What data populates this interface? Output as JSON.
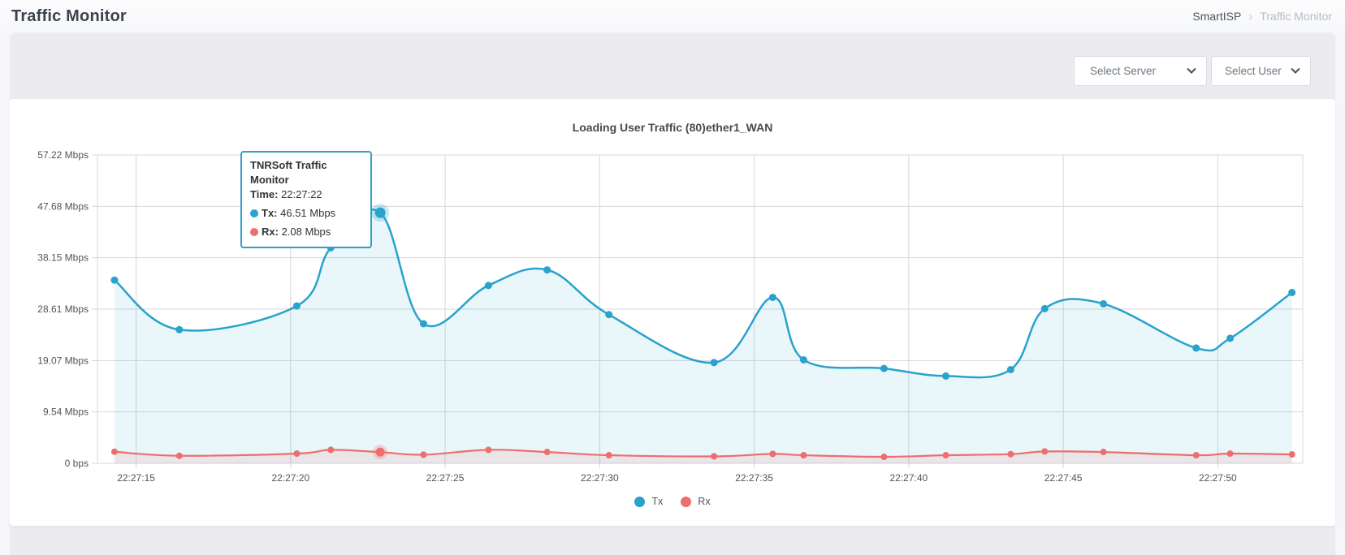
{
  "header": {
    "title": "Traffic Monitor",
    "breadcrumb": {
      "parent": "SmartISP",
      "separator": "›",
      "current": "Traffic Monitor"
    }
  },
  "filters": {
    "server_placeholder": "Select Server",
    "user_placeholder": "Select User"
  },
  "tooltip": {
    "title": "TNRSoft Traffic Monitor",
    "time_label": "Time:",
    "time_value": "22:27:22",
    "tx_label": "Tx:",
    "tx_value": "46.51 Mbps",
    "rx_label": "Rx:",
    "rx_value": "2.08 Mbps"
  },
  "chart_data": {
    "type": "line",
    "title": "Loading User Traffic (80)ether1_WAN",
    "xlabel": "",
    "ylabel": "",
    "ylim": [
      0,
      57.22
    ],
    "x_domain_seconds": [
      13.75,
      52.75
    ],
    "grid": true,
    "legend_position": "bottom",
    "y_ticks": [
      {
        "label": "57.22 Mbps",
        "value": 57.22
      },
      {
        "label": "47.68 Mbps",
        "value": 47.68
      },
      {
        "label": "38.15 Mbps",
        "value": 38.15
      },
      {
        "label": "28.61 Mbps",
        "value": 28.61
      },
      {
        "label": "19.07 Mbps",
        "value": 19.07
      },
      {
        "label": "9.54 Mbps",
        "value": 9.54
      },
      {
        "label": "0 bps",
        "value": 0
      }
    ],
    "x_ticks": [
      {
        "label": "22:27:15",
        "sec": 15
      },
      {
        "label": "22:27:20",
        "sec": 20
      },
      {
        "label": "22:27:25",
        "sec": 25
      },
      {
        "label": "22:27:30",
        "sec": 30
      },
      {
        "label": "22:27:35",
        "sec": 35
      },
      {
        "label": "22:27:40",
        "sec": 40
      },
      {
        "label": "22:27:45",
        "sec": 45
      },
      {
        "label": "22:27:50",
        "sec": 50
      }
    ],
    "active_sec": 22.9,
    "active_point": {
      "time": "22:27:22",
      "tx_mbps": 46.51,
      "rx_mbps": 2.08
    },
    "legend": [
      "Tx",
      "Rx"
    ],
    "series": [
      {
        "name": "Tx",
        "color": "#29a2cc",
        "fill": "rgba(41,162,204,0.10)",
        "points": [
          {
            "time": "22:27:14",
            "sec": 14.3,
            "mbps": 34.0
          },
          {
            "time": "22:27:16",
            "sec": 16.4,
            "mbps": 24.8
          },
          {
            "time": "22:27:20",
            "sec": 20.2,
            "mbps": 29.2
          },
          {
            "time": "22:27:21",
            "sec": 21.3,
            "mbps": 40.0
          },
          {
            "time": "22:27:22",
            "sec": 22.9,
            "mbps": 46.51
          },
          {
            "time": "22:27:24",
            "sec": 24.3,
            "mbps": 25.9
          },
          {
            "time": "22:27:26",
            "sec": 26.4,
            "mbps": 33.0
          },
          {
            "time": "22:27:28",
            "sec": 28.3,
            "mbps": 35.9
          },
          {
            "time": "22:27:30",
            "sec": 30.3,
            "mbps": 27.6
          },
          {
            "time": "22:27:33",
            "sec": 33.7,
            "mbps": 18.7
          },
          {
            "time": "22:27:35",
            "sec": 35.6,
            "mbps": 30.8
          },
          {
            "time": "22:27:36",
            "sec": 36.6,
            "mbps": 19.2
          },
          {
            "time": "22:27:39",
            "sec": 39.2,
            "mbps": 17.6
          },
          {
            "time": "22:27:41",
            "sec": 41.2,
            "mbps": 16.2
          },
          {
            "time": "22:27:43",
            "sec": 43.3,
            "mbps": 17.4
          },
          {
            "time": "22:27:44",
            "sec": 44.4,
            "mbps": 28.7
          },
          {
            "time": "22:27:46",
            "sec": 46.3,
            "mbps": 29.6
          },
          {
            "time": "22:27:49",
            "sec": 49.3,
            "mbps": 21.4
          },
          {
            "time": "22:27:50",
            "sec": 50.4,
            "mbps": 23.2
          },
          {
            "time": "22:27:52",
            "sec": 52.4,
            "mbps": 31.7
          }
        ]
      },
      {
        "name": "Rx",
        "color": "#ed6e6e",
        "fill": "rgba(237,110,110,0.12)",
        "points": [
          {
            "time": "22:27:14",
            "sec": 14.3,
            "mbps": 2.15
          },
          {
            "time": "22:27:16",
            "sec": 16.4,
            "mbps": 1.4
          },
          {
            "time": "22:27:20",
            "sec": 20.2,
            "mbps": 1.8
          },
          {
            "time": "22:27:21",
            "sec": 21.3,
            "mbps": 2.5
          },
          {
            "time": "22:27:22",
            "sec": 22.9,
            "mbps": 2.08
          },
          {
            "time": "22:27:24",
            "sec": 24.3,
            "mbps": 1.6
          },
          {
            "time": "22:27:26",
            "sec": 26.4,
            "mbps": 2.5
          },
          {
            "time": "22:27:28",
            "sec": 28.3,
            "mbps": 2.1
          },
          {
            "time": "22:27:30",
            "sec": 30.3,
            "mbps": 1.5
          },
          {
            "time": "22:27:33",
            "sec": 33.7,
            "mbps": 1.3
          },
          {
            "time": "22:27:35",
            "sec": 35.6,
            "mbps": 1.75
          },
          {
            "time": "22:27:36",
            "sec": 36.6,
            "mbps": 1.5
          },
          {
            "time": "22:27:39",
            "sec": 39.2,
            "mbps": 1.2
          },
          {
            "time": "22:27:41",
            "sec": 41.2,
            "mbps": 1.5
          },
          {
            "time": "22:27:43",
            "sec": 43.3,
            "mbps": 1.7
          },
          {
            "time": "22:27:44",
            "sec": 44.4,
            "mbps": 2.2
          },
          {
            "time": "22:27:46",
            "sec": 46.3,
            "mbps": 2.1
          },
          {
            "time": "22:27:49",
            "sec": 49.3,
            "mbps": 1.5
          },
          {
            "time": "22:27:50",
            "sec": 50.4,
            "mbps": 1.8
          },
          {
            "time": "22:27:52",
            "sec": 52.4,
            "mbps": 1.65
          }
        ]
      }
    ],
    "colors": {
      "grid": "#d7d7d7",
      "axis_text": "#545454"
    }
  }
}
